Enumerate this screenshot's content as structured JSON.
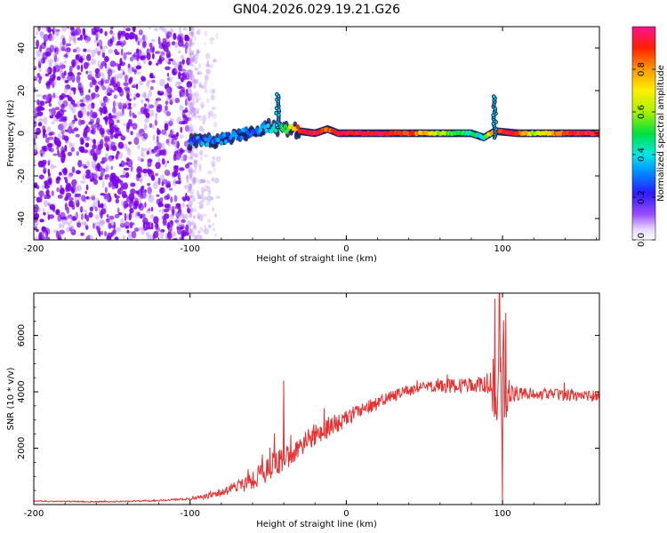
{
  "title": "GN04.2026.029.19.21.G26",
  "colors": {
    "purple": "#7a00e6",
    "purple_light": "#b98cf0",
    "ridge_red": "#e01010",
    "snr_line": "#e83030"
  },
  "chart_data": [
    {
      "type": "heatmap",
      "name": "spectrogram",
      "xlabel": "Height of straight line (km)",
      "ylabel": "Frequency (Hz)",
      "xlim": [
        -200,
        162
      ],
      "ylim": [
        -50,
        50
      ],
      "xticks": [
        -200,
        -100,
        0,
        100
      ],
      "yticks": [
        -40,
        -20,
        0,
        20,
        40
      ],
      "grid": false,
      "noise_region": {
        "x_from": -200,
        "x_to": -100,
        "note": "scattered low-amplitude purple noise"
      },
      "ridge": [
        {
          "x": -100,
          "freq": -4,
          "amp": 0.25
        },
        {
          "x": -90,
          "freq": -4,
          "amp": 0.3
        },
        {
          "x": -80,
          "freq": -3,
          "amp": 0.3
        },
        {
          "x": -70,
          "freq": -1,
          "amp": 0.3
        },
        {
          "x": -60,
          "freq": 1,
          "amp": 0.3
        },
        {
          "x": -50,
          "freq": 3,
          "amp": 0.35
        },
        {
          "x": -40,
          "freq": 2,
          "amp": 0.5
        },
        {
          "x": -30,
          "freq": 1,
          "amp": 0.9
        },
        {
          "x": -20,
          "freq": 0,
          "amp": 0.95
        },
        {
          "x": -12,
          "freq": 2,
          "amp": 0.85
        },
        {
          "x": -5,
          "freq": 0,
          "amp": 0.95
        },
        {
          "x": 20,
          "freq": 0,
          "amp": 0.95
        },
        {
          "x": 40,
          "freq": 0,
          "amp": 0.9
        },
        {
          "x": 60,
          "freq": 0,
          "amp": 0.6
        },
        {
          "x": 80,
          "freq": 0,
          "amp": 0.45
        },
        {
          "x": 88,
          "freq": -2,
          "amp": 0.4
        },
        {
          "x": 95,
          "freq": 1,
          "amp": 0.9
        },
        {
          "x": 110,
          "freq": 0,
          "amp": 0.9
        },
        {
          "x": 120,
          "freq": 0,
          "amp": 0.6
        },
        {
          "x": 140,
          "freq": 0,
          "amp": 0.9
        },
        {
          "x": 162,
          "freq": 0,
          "amp": 0.95
        }
      ],
      "spikes": [
        {
          "x": -44,
          "freq_from": 3,
          "freq_to": 19
        },
        {
          "x": 95,
          "freq_from": -2,
          "freq_to": 18
        }
      ],
      "colorbar": {
        "label": "Normalized spectral amplitude",
        "range": [
          0,
          1
        ],
        "ticks": [
          0.0,
          0.2,
          0.4,
          0.6,
          0.8
        ],
        "tick_labels": [
          "0.0",
          "0.2",
          "0.4",
          "0.6",
          "0.8"
        ]
      }
    },
    {
      "type": "line",
      "name": "snr",
      "xlabel": "Height of straight line (km)",
      "ylabel": "SNR (10 * v/v)",
      "xlim": [
        -200,
        162
      ],
      "ylim": [
        0,
        7500
      ],
      "xticks": [
        -200,
        -100,
        0,
        100
      ],
      "yticks": [
        2000,
        4000,
        6000
      ],
      "grid": false,
      "series": [
        {
          "name": "SNR",
          "x": [
            -200,
            -180,
            -160,
            -140,
            -120,
            -100,
            -90,
            -80,
            -70,
            -60,
            -50,
            -40,
            -30,
            -20,
            -10,
            0,
            10,
            20,
            30,
            40,
            50,
            60,
            70,
            80,
            90,
            95,
            100,
            105,
            110,
            120,
            130,
            140,
            150,
            162
          ],
          "values": [
            120,
            110,
            100,
            110,
            150,
            200,
            280,
            420,
            620,
            900,
            1250,
            1650,
            2050,
            2450,
            2750,
            3050,
            3350,
            3600,
            3850,
            4050,
            4150,
            4200,
            4200,
            4250,
            4250,
            4200,
            4000,
            3950,
            3950,
            3950,
            3900,
            3900,
            3850,
            3850
          ],
          "noise_amp": [
            20,
            20,
            20,
            20,
            30,
            40,
            80,
            150,
            250,
            350,
            450,
            500,
            450,
            400,
            350,
            300,
            250,
            250,
            200,
            200,
            200,
            250,
            250,
            250,
            300,
            1500,
            1800,
            300,
            250,
            200,
            200,
            200,
            200,
            200
          ],
          "peaks": [
            {
              "x": -40,
              "y": 4400
            },
            {
              "x": 95,
              "y": 7300
            },
            {
              "x": 98,
              "y": 7500
            },
            {
              "x": 102,
              "y": 6800
            },
            {
              "x": 100,
              "y": 50
            }
          ]
        }
      ]
    }
  ]
}
